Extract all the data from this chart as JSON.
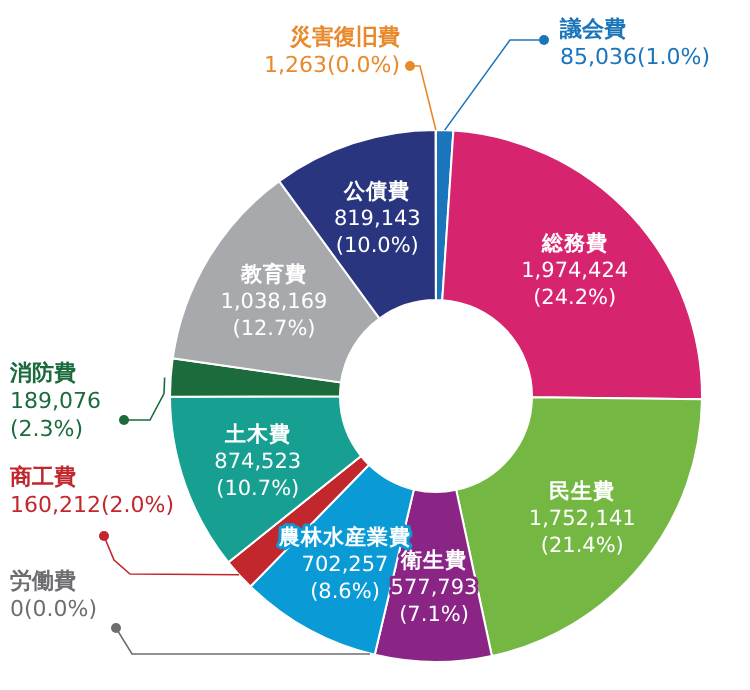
{
  "chart_data": {
    "type": "donut",
    "categories": [
      "議会費",
      "総務費",
      "民生費",
      "衛生費",
      "農林水産業費",
      "労働費",
      "商工費",
      "土木費",
      "消防費",
      "教育費",
      "公債費",
      "災害復旧費"
    ],
    "values": [
      85036,
      1974424,
      1752141,
      577793,
      702257,
      0,
      160212,
      874523,
      189076,
      1038169,
      819143,
      1263
    ],
    "colors": [
      "#1b75bb",
      "#d6246e",
      "#74b843",
      "#8a2586",
      "#0a9ad6",
      "#6d6e71",
      "#c1272d",
      "#17a092",
      "#1b6b3d",
      "#a7a9ac",
      "#29367f",
      "#e8892b"
    ],
    "value_labels": [
      "85,036(1.0%)",
      "1,974,424 (24.2%)",
      "1,752,141 (21.4%)",
      "577,793 (7.1%)",
      "702,257 (8.6%)",
      "0(0.0%)",
      "160,212(2.0%)",
      "874,523 (10.7%)",
      "189,076 (2.3%)",
      "1,038,169 (12.7%)",
      "819,143 (10.0%)",
      "1,263(0.0%)"
    ]
  }
}
